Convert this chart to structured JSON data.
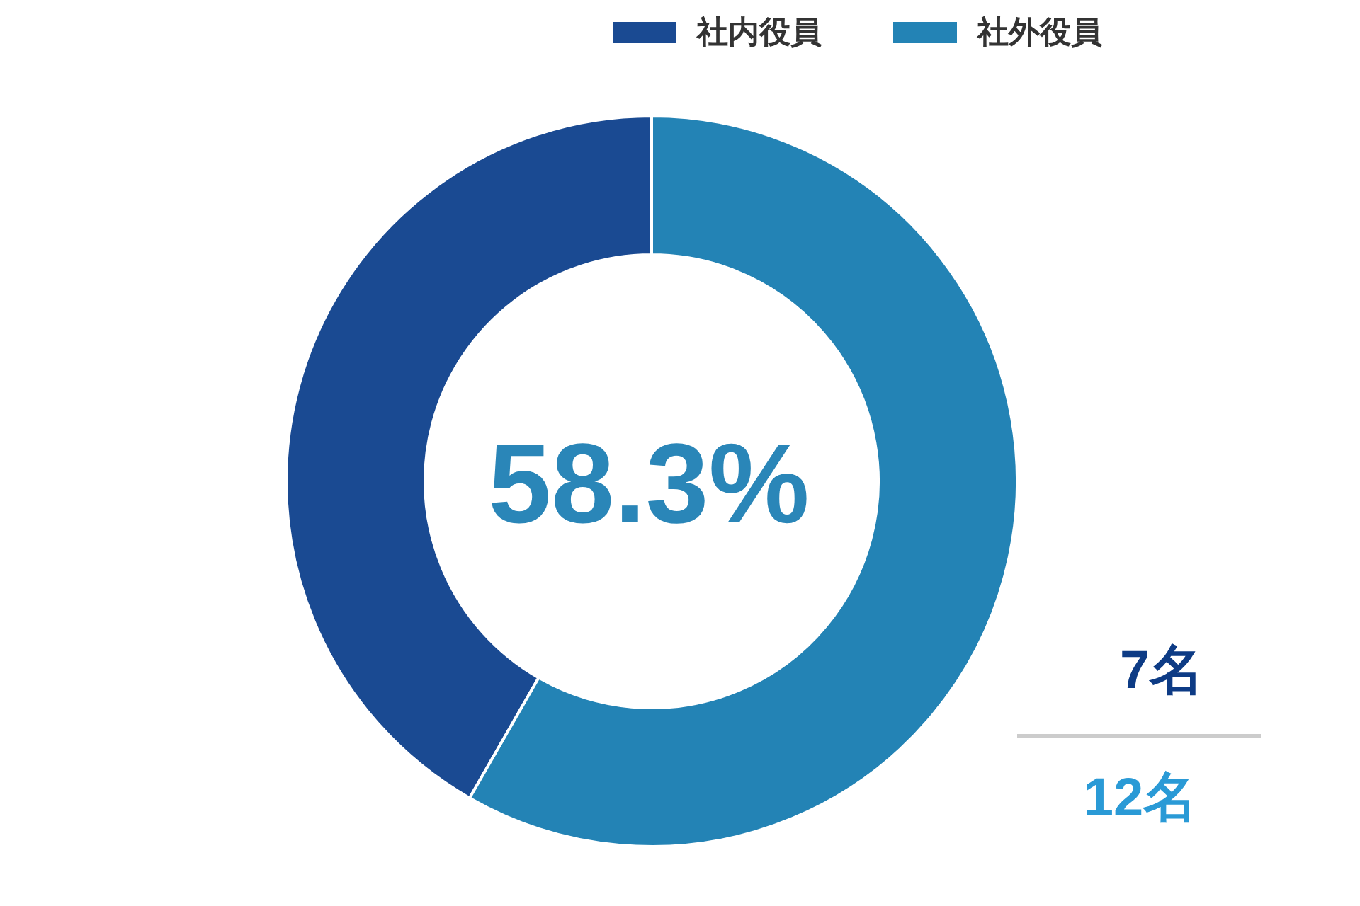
{
  "chart_data": {
    "type": "donut",
    "categories": [
      "社内役員",
      "社外役員"
    ],
    "values": [
      41.7,
      58.3
    ],
    "colors": [
      "#1a4a92",
      "#2383b5"
    ],
    "legend": "top right",
    "annotations": [
      "58.3%",
      "7名",
      "12名"
    ]
  }
}
